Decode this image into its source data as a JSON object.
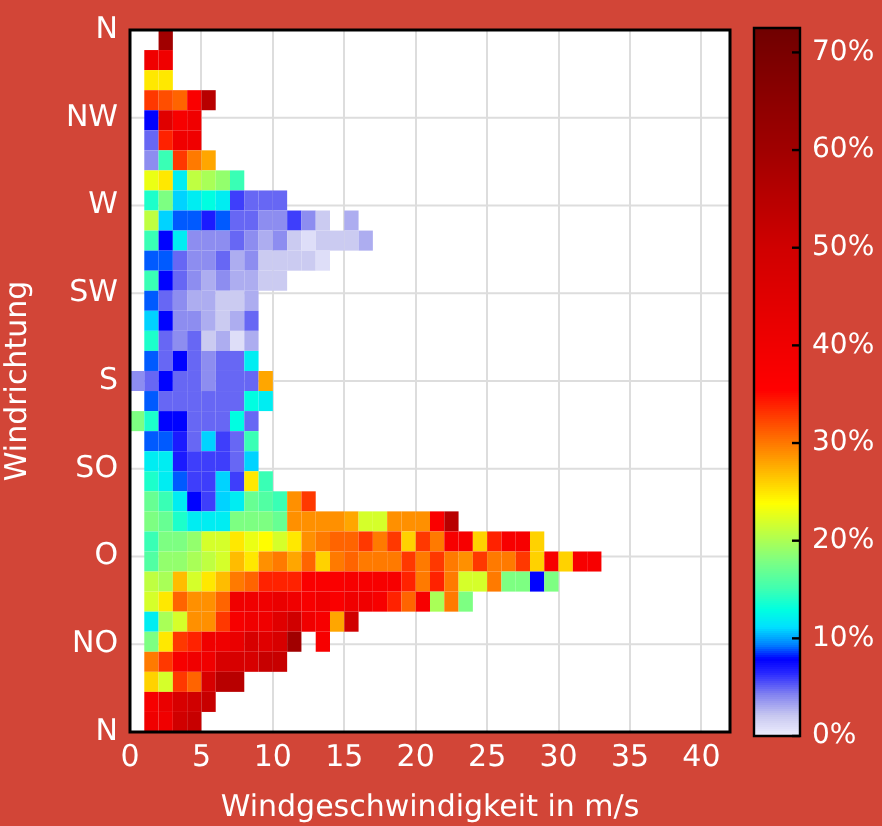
{
  "chart_data": {
    "type": "heatmap",
    "xlabel": "Windgeschwindigkeit in m/s",
    "ylabel": "Windrichtung",
    "x": [
      0.5,
      1.5,
      2.5,
      3.5,
      4.5,
      5.5,
      6.5,
      7.5,
      8.5,
      9.5,
      10.5,
      11.5,
      12.5,
      13.5,
      14.5,
      15.5,
      16.5,
      17.5,
      18.5,
      19.5,
      20.5,
      21.5,
      22.5,
      23.5,
      24.5,
      25.5,
      26.5,
      27.5,
      28.5,
      29.5,
      30.5,
      31.5,
      32.5
    ],
    "y_categories": [
      null,
      null,
      null,
      null,
      null,
      null,
      null,
      null,
      null,
      null,
      null,
      null,
      null,
      null,
      null,
      null,
      null,
      null,
      null,
      null,
      null,
      null,
      null,
      null,
      null,
      null,
      null,
      null,
      null,
      null,
      null,
      null,
      null,
      null,
      null
    ],
    "annotations": [
      "N",
      "NW",
      "W",
      "SW",
      "S",
      "SO",
      "O",
      "NO",
      "N"
    ],
    "xlim": [
      0,
      42
    ],
    "xticks": [
      0,
      5,
      10,
      15,
      20,
      25,
      30,
      35,
      40
    ],
    "clim": [
      0,
      72.5
    ],
    "cticks": [
      {
        "value": 0,
        "label": "0%"
      },
      {
        "value": 10,
        "label": "10%"
      },
      {
        "value": 20,
        "label": "20%"
      },
      {
        "value": 30,
        "label": "30%"
      },
      {
        "value": 40,
        "label": "40%"
      },
      {
        "value": 50,
        "label": "50%"
      },
      {
        "value": 60,
        "label": "60%"
      },
      {
        "value": 70,
        "label": "70%"
      }
    ],
    "grid": true,
    "cells": [
      [
        null,
        null,
        60,
        null,
        null,
        null,
        null,
        null,
        null,
        null,
        null,
        null,
        null,
        null,
        null,
        null,
        null,
        null,
        null,
        null,
        null,
        null,
        null,
        null,
        null,
        null,
        null,
        null,
        null,
        null,
        null,
        null,
        null
      ],
      [
        null,
        40,
        40,
        null,
        null,
        null,
        null,
        null,
        null,
        null,
        null,
        null,
        null,
        null,
        null,
        null,
        null,
        null,
        null,
        null,
        null,
        null,
        null,
        null,
        null,
        null,
        null,
        null,
        null,
        null,
        null,
        null,
        null
      ],
      [
        null,
        25,
        25,
        null,
        null,
        null,
        null,
        null,
        null,
        null,
        null,
        null,
        null,
        null,
        null,
        null,
        null,
        null,
        null,
        null,
        null,
        null,
        null,
        null,
        null,
        null,
        null,
        null,
        null,
        null,
        null,
        null,
        null
      ],
      [
        null,
        33,
        32,
        31,
        37,
        55,
        null,
        null,
        null,
        null,
        null,
        null,
        null,
        null,
        null,
        null,
        null,
        null,
        null,
        null,
        null,
        null,
        null,
        null,
        null,
        null,
        null,
        null,
        null,
        null,
        null,
        null,
        null
      ],
      [
        null,
        8,
        45,
        38,
        40,
        null,
        null,
        null,
        null,
        null,
        null,
        null,
        null,
        null,
        null,
        null,
        null,
        null,
        null,
        null,
        null,
        null,
        null,
        null,
        null,
        null,
        null,
        null,
        null,
        null,
        null,
        null,
        null
      ],
      [
        null,
        5,
        34,
        40,
        40,
        null,
        null,
        null,
        null,
        null,
        null,
        null,
        null,
        null,
        null,
        null,
        null,
        null,
        null,
        null,
        null,
        null,
        null,
        null,
        null,
        null,
        null,
        null,
        null,
        null,
        null,
        null,
        null
      ],
      [
        null,
        4,
        15,
        33,
        30,
        28,
        null,
        null,
        null,
        null,
        null,
        null,
        null,
        null,
        null,
        null,
        null,
        null,
        null,
        null,
        null,
        null,
        null,
        null,
        null,
        null,
        null,
        null,
        null,
        null,
        null,
        null,
        null
      ],
      [
        null,
        23,
        25,
        12,
        21,
        20,
        19,
        15,
        null,
        null,
        null,
        null,
        null,
        null,
        null,
        null,
        null,
        null,
        null,
        null,
        null,
        null,
        null,
        null,
        null,
        null,
        null,
        null,
        null,
        null,
        null,
        null,
        null
      ],
      [
        null,
        14,
        18,
        11,
        12,
        13,
        12,
        6,
        5,
        5,
        5,
        null,
        null,
        null,
        null,
        null,
        null,
        null,
        null,
        null,
        null,
        null,
        null,
        null,
        null,
        null,
        null,
        null,
        null,
        null,
        null,
        null,
        null
      ],
      [
        null,
        21,
        11,
        9,
        9,
        7,
        9,
        5,
        5,
        4,
        4,
        6,
        4,
        2,
        null,
        3,
        null,
        null,
        null,
        null,
        null,
        null,
        null,
        null,
        null,
        null,
        null,
        null,
        null,
        null,
        null,
        null,
        null
      ],
      [
        null,
        15,
        8,
        12,
        4,
        4,
        4,
        5,
        4,
        3,
        4,
        2,
        1,
        2,
        2,
        2,
        3,
        null,
        null,
        null,
        null,
        null,
        null,
        null,
        null,
        null,
        null,
        null,
        null,
        null,
        null,
        null,
        null
      ],
      [
        null,
        9,
        9,
        5,
        4,
        4,
        5,
        3,
        4,
        2,
        2,
        2,
        2,
        1,
        null,
        null,
        null,
        null,
        null,
        null,
        null,
        null,
        null,
        null,
        null,
        null,
        null,
        null,
        null,
        null,
        null,
        null,
        null
      ],
      [
        null,
        15,
        8,
        5,
        4,
        3,
        4,
        3,
        3,
        2,
        2,
        null,
        null,
        null,
        null,
        null,
        null,
        null,
        null,
        null,
        null,
        null,
        null,
        null,
        null,
        null,
        null,
        null,
        null,
        null,
        null,
        null,
        null
      ],
      [
        null,
        9,
        5,
        4,
        3,
        3,
        2,
        2,
        3,
        null,
        null,
        null,
        null,
        null,
        null,
        null,
        null,
        null,
        null,
        null,
        null,
        null,
        null,
        null,
        null,
        null,
        null,
        null,
        null,
        null,
        null,
        null,
        null
      ],
      [
        null,
        11,
        8,
        4,
        4,
        3,
        2,
        3,
        5,
        null,
        null,
        null,
        null,
        null,
        null,
        null,
        null,
        null,
        null,
        null,
        null,
        null,
        null,
        null,
        null,
        null,
        null,
        null,
        null,
        null,
        null,
        null,
        null
      ],
      [
        null,
        14,
        5,
        4,
        5,
        2,
        3,
        1,
        3,
        null,
        null,
        null,
        null,
        null,
        null,
        null,
        null,
        null,
        null,
        null,
        null,
        null,
        null,
        null,
        null,
        null,
        null,
        null,
        null,
        null,
        null,
        null,
        null
      ],
      [
        null,
        9,
        5,
        8,
        5,
        4,
        5,
        5,
        12,
        null,
        null,
        null,
        null,
        null,
        null,
        null,
        null,
        null,
        null,
        null,
        null,
        null,
        null,
        null,
        null,
        null,
        null,
        null,
        null,
        null,
        null,
        null,
        null
      ],
      [
        4,
        5,
        8,
        5,
        5,
        4,
        5,
        5,
        5,
        28,
        null,
        null,
        null,
        null,
        null,
        null,
        null,
        null,
        null,
        null,
        null,
        null,
        null,
        null,
        null,
        null,
        null,
        null,
        null,
        null,
        null,
        null,
        null
      ],
      [
        null,
        9,
        5,
        5,
        5,
        5,
        5,
        5,
        13,
        12,
        null,
        null,
        null,
        null,
        null,
        null,
        null,
        null,
        null,
        null,
        null,
        null,
        null,
        null,
        null,
        null,
        null,
        null,
        null,
        null,
        null,
        null,
        null
      ],
      [
        18,
        14,
        8,
        8,
        5,
        5,
        5,
        13,
        5,
        null,
        null,
        null,
        null,
        null,
        null,
        null,
        null,
        null,
        null,
        null,
        null,
        null,
        null,
        null,
        null,
        null,
        null,
        null,
        null,
        null,
        null,
        null,
        null
      ],
      [
        null,
        9,
        9,
        7,
        5,
        11,
        6,
        5,
        15,
        null,
        null,
        null,
        null,
        null,
        null,
        null,
        null,
        null,
        null,
        null,
        null,
        null,
        null,
        null,
        null,
        null,
        null,
        null,
        null,
        null,
        null,
        null,
        null
      ],
      [
        null,
        12,
        12,
        7,
        6,
        6,
        6,
        5,
        11,
        null,
        null,
        null,
        null,
        null,
        null,
        null,
        null,
        null,
        null,
        null,
        null,
        null,
        null,
        null,
        null,
        null,
        null,
        null,
        null,
        null,
        null,
        null,
        null
      ],
      [
        null,
        14,
        12,
        9,
        6,
        6,
        11,
        6,
        25,
        15,
        null,
        null,
        null,
        null,
        null,
        null,
        null,
        null,
        null,
        null,
        null,
        null,
        null,
        null,
        null,
        null,
        null,
        null,
        null,
        null,
        null,
        null,
        null
      ],
      [
        null,
        17,
        15,
        12,
        8,
        6,
        11,
        12,
        17,
        16,
        15,
        29,
        33,
        null,
        null,
        null,
        null,
        null,
        null,
        null,
        null,
        null,
        null,
        null,
        null,
        null,
        null,
        null,
        null,
        null,
        null,
        null,
        null
      ],
      [
        null,
        18,
        17,
        14,
        12,
        12,
        12,
        18,
        18,
        18,
        17,
        29,
        29,
        29,
        29,
        28,
        22,
        22,
        29,
        29,
        29,
        37,
        55,
        null,
        null,
        null,
        null,
        null,
        null,
        null,
        null,
        null,
        null
      ],
      [
        null,
        15,
        18,
        18,
        19,
        22,
        22,
        25,
        23,
        24,
        22,
        25,
        29,
        30,
        31,
        31,
        33,
        30,
        33,
        26,
        33,
        30,
        38,
        38,
        26,
        34,
        38,
        38,
        26,
        null,
        null,
        null,
        null
      ],
      [
        null,
        16,
        19,
        19,
        20,
        21,
        22,
        27,
        25,
        29,
        30,
        28,
        31,
        26,
        30,
        31,
        30,
        30,
        30,
        33,
        30,
        33,
        30,
        29,
        33,
        30,
        30,
        33,
        26,
        38,
        26,
        38,
        38
      ],
      [
        null,
        21,
        20,
        27,
        22,
        25,
        27,
        30,
        31,
        34,
        34,
        34,
        37,
        37,
        37,
        38,
        38,
        38,
        38,
        34,
        30,
        34,
        30,
        22,
        22,
        30,
        18,
        18,
        8,
        18,
        null,
        null,
        null
      ],
      [
        null,
        22,
        25,
        31,
        29,
        29,
        31,
        40,
        40,
        40,
        42,
        40,
        38,
        40,
        37,
        40,
        40,
        38,
        34,
        31,
        38,
        20,
        30,
        18,
        null,
        null,
        null,
        null,
        null,
        null,
        null,
        null,
        null
      ],
      [
        null,
        12,
        20,
        22,
        29,
        29,
        33,
        38,
        40,
        40,
        45,
        50,
        40,
        38,
        28,
        50,
        null,
        null,
        null,
        null,
        null,
        null,
        null,
        null,
        null,
        null,
        null,
        null,
        null,
        null,
        null,
        null,
        null
      ],
      [
        null,
        18,
        25,
        33,
        34,
        40,
        40,
        42,
        48,
        45,
        48,
        60,
        null,
        38,
        null,
        null,
        null,
        null,
        null,
        null,
        null,
        null,
        null,
        null,
        null,
        null,
        null,
        null,
        null,
        null,
        null,
        null,
        null
      ],
      [
        null,
        30,
        33,
        38,
        40,
        40,
        48,
        48,
        48,
        52,
        52,
        null,
        null,
        null,
        null,
        null,
        null,
        null,
        null,
        null,
        null,
        null,
        null,
        null,
        null,
        null,
        null,
        null,
        null,
        null,
        null,
        null,
        null
      ],
      [
        null,
        26,
        22,
        33,
        31,
        48,
        55,
        55,
        null,
        null,
        null,
        null,
        null,
        null,
        null,
        null,
        null,
        null,
        null,
        null,
        null,
        null,
        null,
        null,
        null,
        null,
        null,
        null,
        null,
        null,
        null,
        null,
        null
      ],
      [
        null,
        38,
        42,
        48,
        50,
        52,
        null,
        null,
        null,
        null,
        null,
        null,
        null,
        null,
        null,
        null,
        null,
        null,
        null,
        null,
        null,
        null,
        null,
        null,
        null,
        null,
        null,
        null,
        null,
        null,
        null,
        null,
        null
      ],
      [
        null,
        40,
        40,
        50,
        52,
        null,
        null,
        null,
        null,
        null,
        null,
        null,
        null,
        null,
        null,
        null,
        null,
        null,
        null,
        null,
        null,
        null,
        null,
        null,
        null,
        null,
        null,
        null,
        null,
        null,
        null,
        null,
        null
      ]
    ]
  }
}
